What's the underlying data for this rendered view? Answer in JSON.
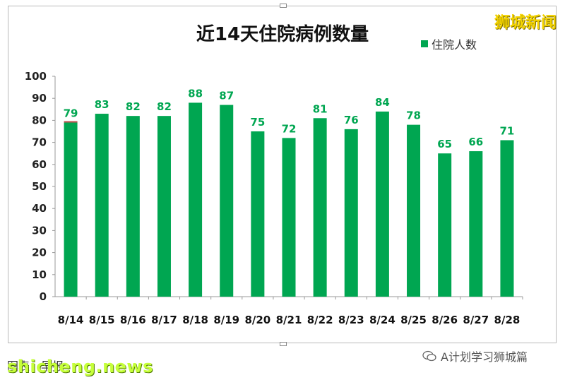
{
  "watermark_top": "狮城新闻",
  "footer": {
    "left_text": "图表：早报",
    "brand": "shicheng.news",
    "account": "A计划学习狮城篇",
    "account_icon": "wechat-icon"
  },
  "chart_data": {
    "type": "bar",
    "title": "近14天住院病例数量",
    "legend": [
      "住院人数"
    ],
    "legend_position": "top-right",
    "xlabel": "",
    "ylabel": "",
    "ylim": [
      0,
      100
    ],
    "yticks": [
      "0",
      "10",
      "20",
      "30",
      "40",
      "50",
      "60",
      "70",
      "80",
      "90",
      "100"
    ],
    "grid": false,
    "categories": [
      "8/14",
      "8/15",
      "8/16",
      "8/17",
      "8/18",
      "8/19",
      "8/20",
      "8/21",
      "8/22",
      "8/23",
      "8/24",
      "8/25",
      "8/26",
      "8/27",
      "8/28"
    ],
    "series": [
      {
        "name": "住院人数",
        "color": "#00a651",
        "values": [
          79,
          83,
          82,
          82,
          88,
          87,
          75,
          72,
          81,
          76,
          84,
          78,
          65,
          66,
          71
        ],
        "labels": [
          "79",
          "83",
          "82",
          "82",
          "88",
          "87",
          "75",
          "72",
          "81",
          "76",
          "84",
          "78",
          "65",
          "66",
          "71"
        ]
      }
    ],
    "label_color": "#00a651",
    "accent_color": "#c0504d"
  }
}
